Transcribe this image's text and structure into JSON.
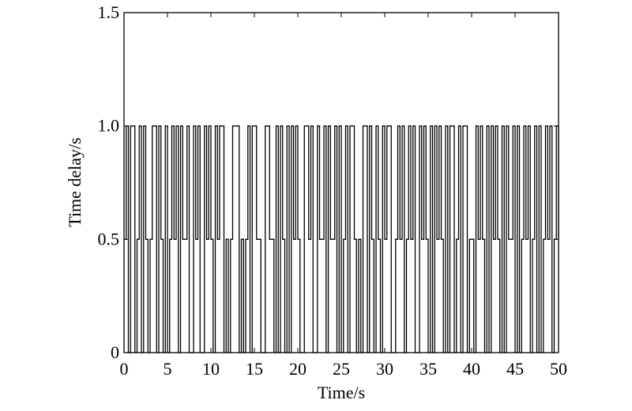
{
  "chart_data": {
    "type": "line",
    "drawstyle": "steps-post",
    "xlabel": "Time/s",
    "ylabel": "Time delay/s",
    "x": [
      0,
      0.25,
      0.5,
      0.75,
      1,
      1.25,
      1.5,
      1.75,
      2,
      2.25,
      2.5,
      2.75,
      3,
      3.25,
      3.5,
      3.75,
      4,
      4.25,
      4.5,
      4.75,
      5,
      5.25,
      5.5,
      5.75,
      6,
      6.25,
      6.5,
      6.75,
      7,
      7.25,
      7.5,
      7.75,
      8,
      8.25,
      8.5,
      8.75,
      9,
      9.25,
      9.5,
      9.75,
      10,
      10.25,
      10.5,
      10.75,
      11,
      11.25,
      11.5,
      11.75,
      12,
      12.25,
      12.5,
      12.75,
      13,
      13.25,
      13.5,
      13.75,
      14,
      14.25,
      14.5,
      14.75,
      15,
      15.25,
      15.5,
      15.75,
      16,
      16.25,
      16.5,
      16.75,
      17,
      17.25,
      17.5,
      17.75,
      18,
      18.25,
      18.5,
      18.75,
      19,
      19.25,
      19.5,
      19.75,
      20,
      20.25,
      20.5,
      20.75,
      21,
      21.25,
      21.5,
      21.75,
      22,
      22.25,
      22.5,
      22.75,
      23,
      23.25,
      23.5,
      23.75,
      24,
      24.25,
      24.5,
      24.75,
      25,
      25.25,
      25.5,
      25.75,
      26,
      26.25,
      26.5,
      26.75,
      27,
      27.25,
      27.5,
      27.75,
      28,
      28.25,
      28.5,
      28.75,
      29,
      29.25,
      29.5,
      29.75,
      30,
      30.25,
      30.5,
      30.75,
      31,
      31.25,
      31.5,
      31.75,
      32,
      32.25,
      32.5,
      32.75,
      33,
      33.25,
      33.5,
      33.75,
      34,
      34.25,
      34.5,
      34.75,
      35,
      35.25,
      35.5,
      35.75,
      36,
      36.25,
      36.5,
      36.75,
      37,
      37.25,
      37.5,
      37.75,
      38,
      38.25,
      38.5,
      38.75,
      39,
      39.25,
      39.5,
      39.75,
      40,
      40.25,
      40.5,
      40.75,
      41,
      41.25,
      41.5,
      41.75,
      42,
      42.25,
      42.5,
      42.75,
      43,
      43.25,
      43.5,
      43.75,
      44,
      44.25,
      44.5,
      44.75,
      45,
      45.25,
      45.5,
      45.75,
      46,
      46.25,
      46.5,
      46.75,
      47,
      47.25,
      47.5,
      47.75,
      48,
      48.25,
      48.5,
      48.75,
      49,
      49.25,
      49.5,
      49.75,
      50
    ],
    "values": [
      0.5,
      1,
      0,
      1,
      1,
      0,
      0.5,
      1,
      0,
      1,
      0.5,
      0,
      0.5,
      1,
      1,
      0,
      1,
      0.5,
      0,
      1,
      0,
      0.5,
      1,
      0.5,
      1,
      0,
      1,
      0.5,
      0.5,
      1,
      0,
      0,
      1,
      0.5,
      1,
      0,
      0,
      1,
      0.5,
      1,
      0.5,
      0,
      1,
      0.5,
      1,
      1,
      0,
      0.5,
      0,
      0.5,
      1,
      1,
      1,
      0,
      0.5,
      0,
      0.5,
      1,
      0,
      1,
      1,
      0.5,
      0.5,
      0,
      0,
      1,
      1,
      0.5,
      0.5,
      0,
      1,
      0,
      1,
      0.5,
      0,
      1,
      0,
      1,
      0.5,
      1,
      0.5,
      0,
      0,
      1,
      1,
      0.5,
      1,
      0,
      0,
      1,
      0.5,
      0.5,
      1,
      0,
      1,
      0.5,
      0.5,
      1,
      0,
      1,
      0,
      0.5,
      1,
      0,
      1,
      1,
      0.5,
      0,
      0.5,
      0,
      1,
      1,
      0,
      1,
      0.5,
      0,
      1,
      0.5,
      0,
      1,
      0.5,
      1,
      1,
      0,
      0,
      0.5,
      1,
      0.5,
      1,
      0,
      0.5,
      1,
      0.5,
      1,
      0,
      0,
      1,
      0.5,
      1,
      0.5,
      0,
      1,
      0,
      1,
      0.5,
      1,
      0.5,
      0,
      1,
      0,
      1,
      1,
      0,
      0.5,
      1,
      0,
      1,
      1,
      0,
      0.5,
      0.5,
      0,
      1,
      0.5,
      1,
      0.5,
      0,
      1,
      0,
      1,
      0.5,
      1,
      0.5,
      0,
      1,
      0,
      1,
      0.5,
      0.5,
      1,
      0,
      1,
      0,
      0.5,
      1,
      0.5,
      1,
      0,
      0.5,
      1,
      0,
      1,
      0,
      0.5,
      1,
      0.5,
      1,
      0,
      0.5,
      1,
      0.5
    ],
    "color": "#000000",
    "xlim": [
      0,
      50
    ],
    "xticks": [
      0,
      5,
      10,
      15,
      20,
      25,
      30,
      35,
      40,
      45,
      50
    ],
    "ylim": [
      0,
      1.5
    ],
    "yticks": [
      0,
      0.5,
      {
        "value": 1,
        "label": "1.0"
      },
      1.5
    ]
  }
}
